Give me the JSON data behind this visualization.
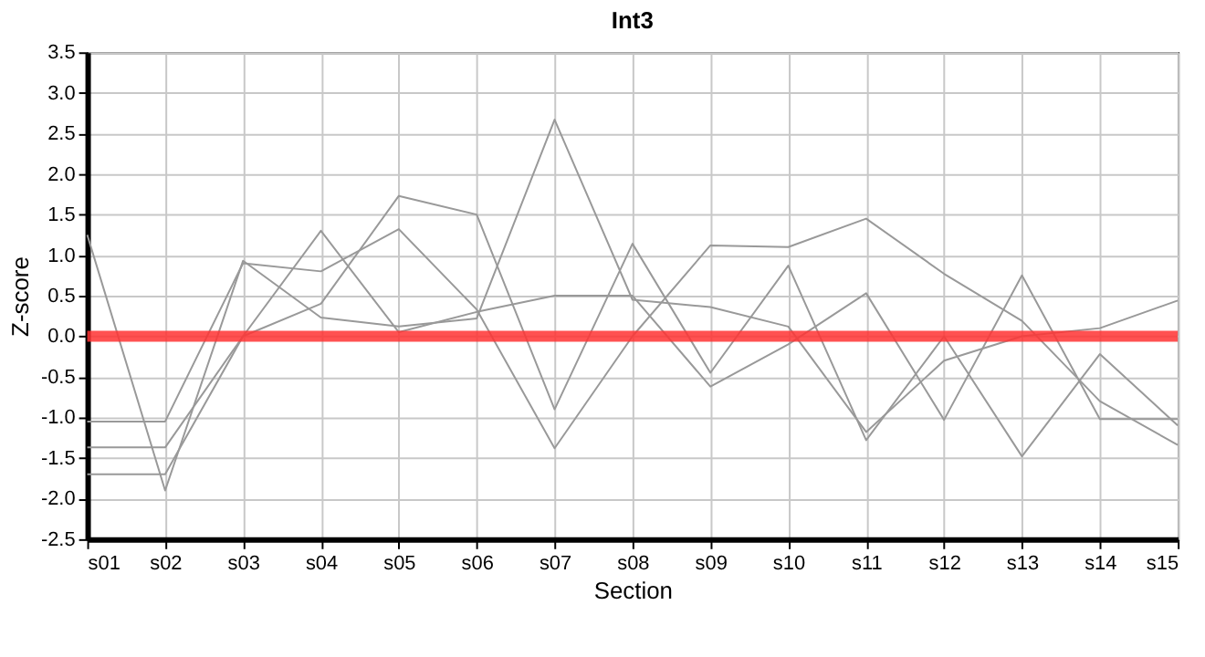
{
  "chart_data": {
    "type": "line",
    "title": "Int3",
    "xlabel": "Section",
    "ylabel": "Z-score",
    "categories": [
      "s01",
      "s02",
      "s03",
      "s04",
      "s05",
      "s06",
      "s07",
      "s08",
      "s09",
      "s10",
      "s11",
      "s12",
      "s13",
      "s14",
      "s15"
    ],
    "series": [
      {
        "color": "#999999",
        "values": [
          1.25,
          -1.9,
          0.93,
          0.23,
          0.12,
          0.22,
          2.67,
          0.45,
          0.36,
          0.12,
          -1.18,
          -0.3,
          0.0,
          0.1,
          0.44
        ]
      },
      {
        "color": "#999999",
        "values": [
          -1.7,
          -1.7,
          0.0,
          1.3,
          0.05,
          0.3,
          0.5,
          0.5,
          -0.62,
          -0.1,
          0.53,
          -1.03,
          0.75,
          -1.02,
          -1.02
        ]
      },
      {
        "color": "#999999",
        "values": [
          -1.37,
          -1.37,
          0.0,
          0.4,
          1.73,
          1.5,
          -0.9,
          1.14,
          -0.45,
          0.87,
          -1.28,
          0.0,
          -1.48,
          -0.22,
          -1.1
        ]
      },
      {
        "color": "#999999",
        "values": [
          -1.05,
          -1.05,
          0.9,
          0.8,
          1.32,
          0.33,
          -1.38,
          0.0,
          1.12,
          1.1,
          1.45,
          0.77,
          0.19,
          -0.8,
          -1.34
        ]
      }
    ],
    "ylim": [
      -2.5,
      3.5
    ],
    "yticks": [
      {
        "value": -2.5,
        "label": "-2.5"
      },
      {
        "value": -2,
        "label": "-2.0"
      },
      {
        "value": -1.5,
        "label": "-1.5"
      },
      {
        "value": -1,
        "label": "-1.0"
      },
      {
        "value": -0.5,
        "label": "-0.5"
      },
      {
        "value": 0,
        "label": "0.0"
      },
      {
        "value": 0.5,
        "label": "0.5"
      },
      {
        "value": 1,
        "label": "1.0"
      },
      {
        "value": 1.5,
        "label": "1.5"
      },
      {
        "value": 2,
        "label": "2.0"
      },
      {
        "value": 2.5,
        "label": "2.5"
      },
      {
        "value": 3,
        "label": "3.0"
      },
      {
        "value": 3.5,
        "label": "3.5"
      }
    ],
    "ref_lines": [
      {
        "axis": "y",
        "value": 0,
        "color": "#ff3333"
      }
    ],
    "grid": true,
    "marker": "none",
    "line_style": "solid"
  }
}
